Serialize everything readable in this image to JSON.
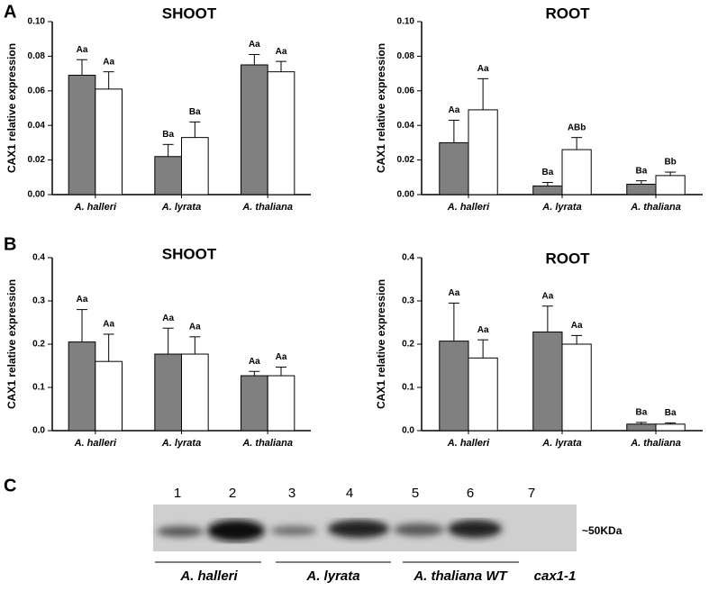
{
  "panels": [
    "A",
    "B",
    "C"
  ],
  "chart_data": [
    {
      "type": "bar",
      "title": "SHOOT",
      "ylabel": "CAX1 relative expression",
      "categories": [
        "A. halleri",
        "A. lyrata",
        "A. thaliana"
      ],
      "ylim": [
        0,
        0.1
      ],
      "yticks": [
        {
          "value": 0,
          "label": "0.00"
        },
        {
          "value": 0.02,
          "label": "0.02"
        },
        {
          "value": 0.04,
          "label": "0.04"
        },
        {
          "value": 0.06,
          "label": "0.06"
        },
        {
          "value": 0.08,
          "label": "0.08"
        },
        {
          "value": 0.1,
          "label": "0.10"
        }
      ],
      "series": [
        {
          "color": "#808080",
          "values": [
            0.069,
            0.022,
            0.075
          ],
          "errors": [
            0.009,
            0.007,
            0.006
          ],
          "annotations": [
            "Aa",
            "Ba",
            "Aa"
          ]
        },
        {
          "color": "#ffffff",
          "values": [
            0.061,
            0.033,
            0.071
          ],
          "errors": [
            0.01,
            0.009,
            0.006
          ],
          "annotations": [
            "Aa",
            "Ba",
            "Aa"
          ]
        }
      ]
    },
    {
      "type": "bar",
      "title": "ROOT",
      "ylabel": "CAX1 relative expression",
      "categories": [
        "A. halleri",
        "A. lyrata",
        "A. thaliana"
      ],
      "ylim": [
        0,
        0.1
      ],
      "yticks": [
        {
          "value": 0,
          "label": "0.00"
        },
        {
          "value": 0.02,
          "label": "0.02"
        },
        {
          "value": 0.04,
          "label": "0.04"
        },
        {
          "value": 0.06,
          "label": "0.06"
        },
        {
          "value": 0.08,
          "label": "0.08"
        },
        {
          "value": 0.1,
          "label": "0.10"
        }
      ],
      "series": [
        {
          "color": "#808080",
          "values": [
            0.03,
            0.005,
            0.006
          ],
          "errors": [
            0.013,
            0.002,
            0.002
          ],
          "annotations": [
            "Aa",
            "Ba",
            "Ba"
          ]
        },
        {
          "color": "#ffffff",
          "values": [
            0.049,
            0.026,
            0.011
          ],
          "errors": [
            0.018,
            0.007,
            0.002
          ],
          "annotations": [
            "Aa",
            "ABb",
            "Bb"
          ]
        }
      ]
    },
    {
      "type": "bar",
      "title": "SHOOT",
      "ylabel": "CAX1 relative expression",
      "categories": [
        "A. halleri",
        "A. lyrata",
        "A. thaliana"
      ],
      "ylim": [
        0,
        0.4
      ],
      "yticks": [
        {
          "value": 0,
          "label": "0.0"
        },
        0.1,
        0.2,
        0.3,
        0.4
      ],
      "series": [
        {
          "color": "#808080",
          "values": [
            0.205,
            0.177,
            0.127
          ],
          "errors": [
            0.075,
            0.06,
            0.01
          ],
          "annotations": [
            "Aa",
            "Aa",
            "Aa"
          ]
        },
        {
          "color": "#ffffff",
          "values": [
            0.16,
            0.177,
            0.127
          ],
          "errors": [
            0.063,
            0.04,
            0.02
          ],
          "annotations": [
            "Aa",
            "Aa",
            "Aa"
          ]
        }
      ]
    },
    {
      "type": "bar",
      "title": "ROOT",
      "ylabel": "CAX1 relative expression",
      "categories": [
        "A. halleri",
        "A. lyrata",
        "A. thaliana"
      ],
      "ylim": [
        0,
        0.4
      ],
      "yticks": [
        {
          "value": 0,
          "label": "0.0"
        },
        0.1,
        0.2,
        0.3,
        0.4
      ],
      "series": [
        {
          "color": "#808080",
          "values": [
            0.207,
            0.228,
            0.015
          ],
          "errors": [
            0.088,
            0.06,
            0.004
          ],
          "annotations": [
            "Aa",
            "Aa",
            "Ba"
          ]
        },
        {
          "color": "#ffffff",
          "values": [
            0.168,
            0.2,
            0.015
          ],
          "errors": [
            0.042,
            0.02,
            0.003
          ],
          "annotations": [
            "Aa",
            "Aa",
            "Ba"
          ]
        }
      ]
    }
  ],
  "blot": {
    "lanes": [
      "1",
      "2",
      "3",
      "4",
      "5",
      "6",
      "7"
    ],
    "marker": "~50KDa",
    "groups": [
      "A. halleri",
      "A. lyrata",
      "A. thaliana WT",
      "cax1-1"
    ]
  }
}
